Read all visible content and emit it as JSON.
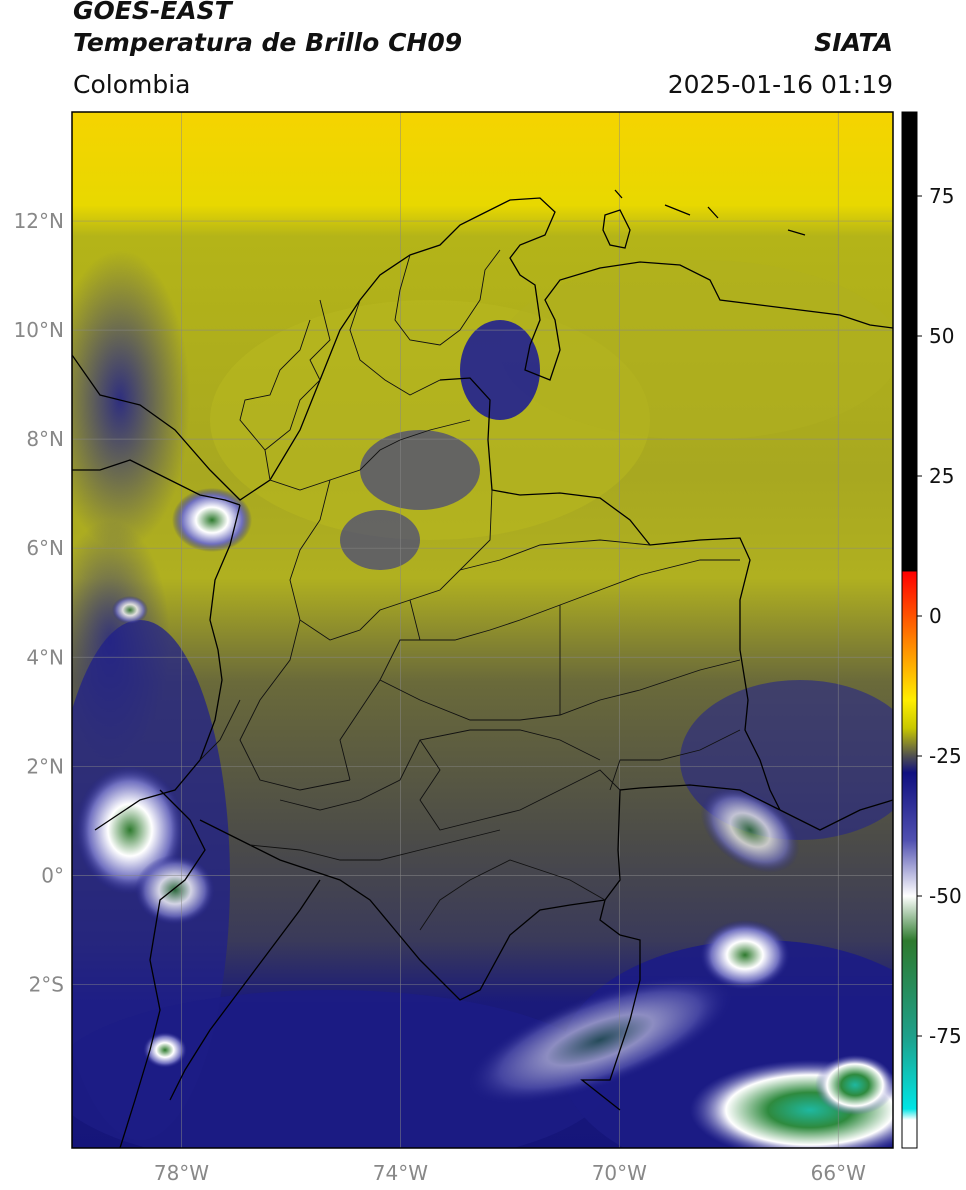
{
  "header": {
    "satellite": "GOES-EAST",
    "product": "Temperatura de Brillo CH09",
    "brand": "SIATA",
    "region": "Colombia",
    "timestamp": "2025-01-16 01:19"
  },
  "map": {
    "extent": {
      "lon_min": -80.0,
      "lon_max": -65.0,
      "lat_min": -5.0,
      "lat_max": 14.0
    },
    "lat_ticks": [
      {
        "value": 12,
        "label": "12°N"
      },
      {
        "value": 10,
        "label": "10°N"
      },
      {
        "value": 8,
        "label": "8°N"
      },
      {
        "value": 6,
        "label": "6°N"
      },
      {
        "value": 4,
        "label": "4°N"
      },
      {
        "value": 2,
        "label": "2°N"
      },
      {
        "value": 0,
        "label": "0°"
      },
      {
        "value": -2,
        "label": "2°S"
      }
    ],
    "lon_ticks": [
      {
        "value": -78,
        "label": "78°W"
      },
      {
        "value": -74,
        "label": "74°W"
      },
      {
        "value": -70,
        "label": "70°W"
      },
      {
        "value": -66,
        "label": "66°W"
      }
    ],
    "grid": true
  },
  "colorbar": {
    "vmin": -95,
    "vmax": 90,
    "tick_values": [
      75,
      50,
      25,
      0,
      -25,
      -50,
      -75
    ],
    "tick_labels": [
      "75",
      "50",
      "25",
      "0",
      "-25",
      "-50",
      "-75"
    ],
    "stops": [
      {
        "value": 90,
        "color": "#000000"
      },
      {
        "value": 8,
        "color": "#000000"
      },
      {
        "value": 7.9,
        "color": "#ff0000"
      },
      {
        "value": -5,
        "color": "#ff8800"
      },
      {
        "value": -15,
        "color": "#ffee00"
      },
      {
        "value": -20,
        "color": "#c8c800"
      },
      {
        "value": -25,
        "color": "#505050"
      },
      {
        "value": -28,
        "color": "#101080"
      },
      {
        "value": -40,
        "color": "#5050b0"
      },
      {
        "value": -50,
        "color": "#ffffff"
      },
      {
        "value": -58,
        "color": "#2e7a2e"
      },
      {
        "value": -75,
        "color": "#1fa08a"
      },
      {
        "value": -88,
        "color": "#00e5e5"
      },
      {
        "value": -90,
        "color": "#ffffff"
      },
      {
        "value": -95,
        "color": "#ffffff"
      }
    ]
  }
}
